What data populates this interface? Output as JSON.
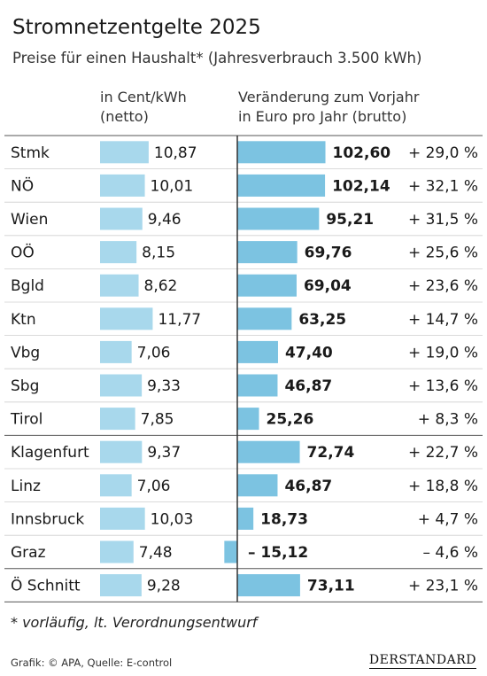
{
  "header": {
    "title": "Stromnetzentgelte 2025",
    "subtitle": "Preise für einen Haushalt* (Jahresverbrauch 3.500 kWh)"
  },
  "columns": {
    "price_line1": "in Cent/kWh",
    "price_line2": "(netto)",
    "change_line1": "Veränderung zum Vorjahr",
    "change_line2": "in Euro pro Jahr (brutto)"
  },
  "chart_data": {
    "type": "bar",
    "categories": [
      "Stmk",
      "NÖ",
      "Wien",
      "OÖ",
      "Bgld",
      "Ktn",
      "Vbg",
      "Sbg",
      "Tirol",
      "Klagenfurt",
      "Linz",
      "Innsbruck",
      "Graz",
      "Ö Schnitt"
    ],
    "series": [
      {
        "values": [
          10.87,
          10.01,
          9.46,
          8.15,
          8.62,
          11.77,
          7.06,
          9.33,
          7.85,
          9.37,
          7.06,
          10.03,
          7.48,
          9.28
        ],
        "labels": [
          "10,87",
          "10,01",
          "9,46",
          "8,15",
          "8,62",
          "11,77",
          "7,06",
          "9,33",
          "7,85",
          "9,37",
          "7,06",
          "10,03",
          "7,48",
          "9,28"
        ]
      },
      {
        "values": [
          102.6,
          102.14,
          95.21,
          69.76,
          69.04,
          63.25,
          47.4,
          46.87,
          25.26,
          72.74,
          46.87,
          18.73,
          -15.12,
          73.11
        ],
        "labels": [
          "102,60",
          "102,14",
          "95,21",
          "69,76",
          "69,04",
          "63,25",
          "47,40",
          "46,87",
          "25,26",
          "72,74",
          "46,87",
          "18,73",
          "– 15,12",
          "73,11"
        ]
      },
      {
        "values": [
          29.0,
          32.1,
          31.5,
          25.6,
          23.6,
          14.7,
          19.0,
          13.6,
          8.3,
          22.7,
          18.8,
          4.7,
          -4.6,
          23.1
        ],
        "labels": [
          "+ 29,0 %",
          "+ 32,1 %",
          "+ 31,5 %",
          "+ 25,6 %",
          "+ 23,6 %",
          "+ 14,7 %",
          "+ 19,0 %",
          "+ 13,6 %",
          "+ 8,3 %",
          "+ 22,7 %",
          "+ 18,8 %",
          "+ 4,7 %",
          "– 4,6 %",
          "+ 23,1 %"
        ]
      }
    ],
    "group_breaks_after": [
      8,
      12
    ],
    "colors": {
      "price_bar": "#a8d8ec",
      "change_bar": "#7cc3e1",
      "divider": "#333333",
      "row_line": "#cfcfcf"
    }
  },
  "footer": {
    "footnote": "* vorläufig, lt. Verordnungsentwurf",
    "source": "Grafik: © APA, Quelle: E-control",
    "logo": "DERSTANDARD"
  }
}
